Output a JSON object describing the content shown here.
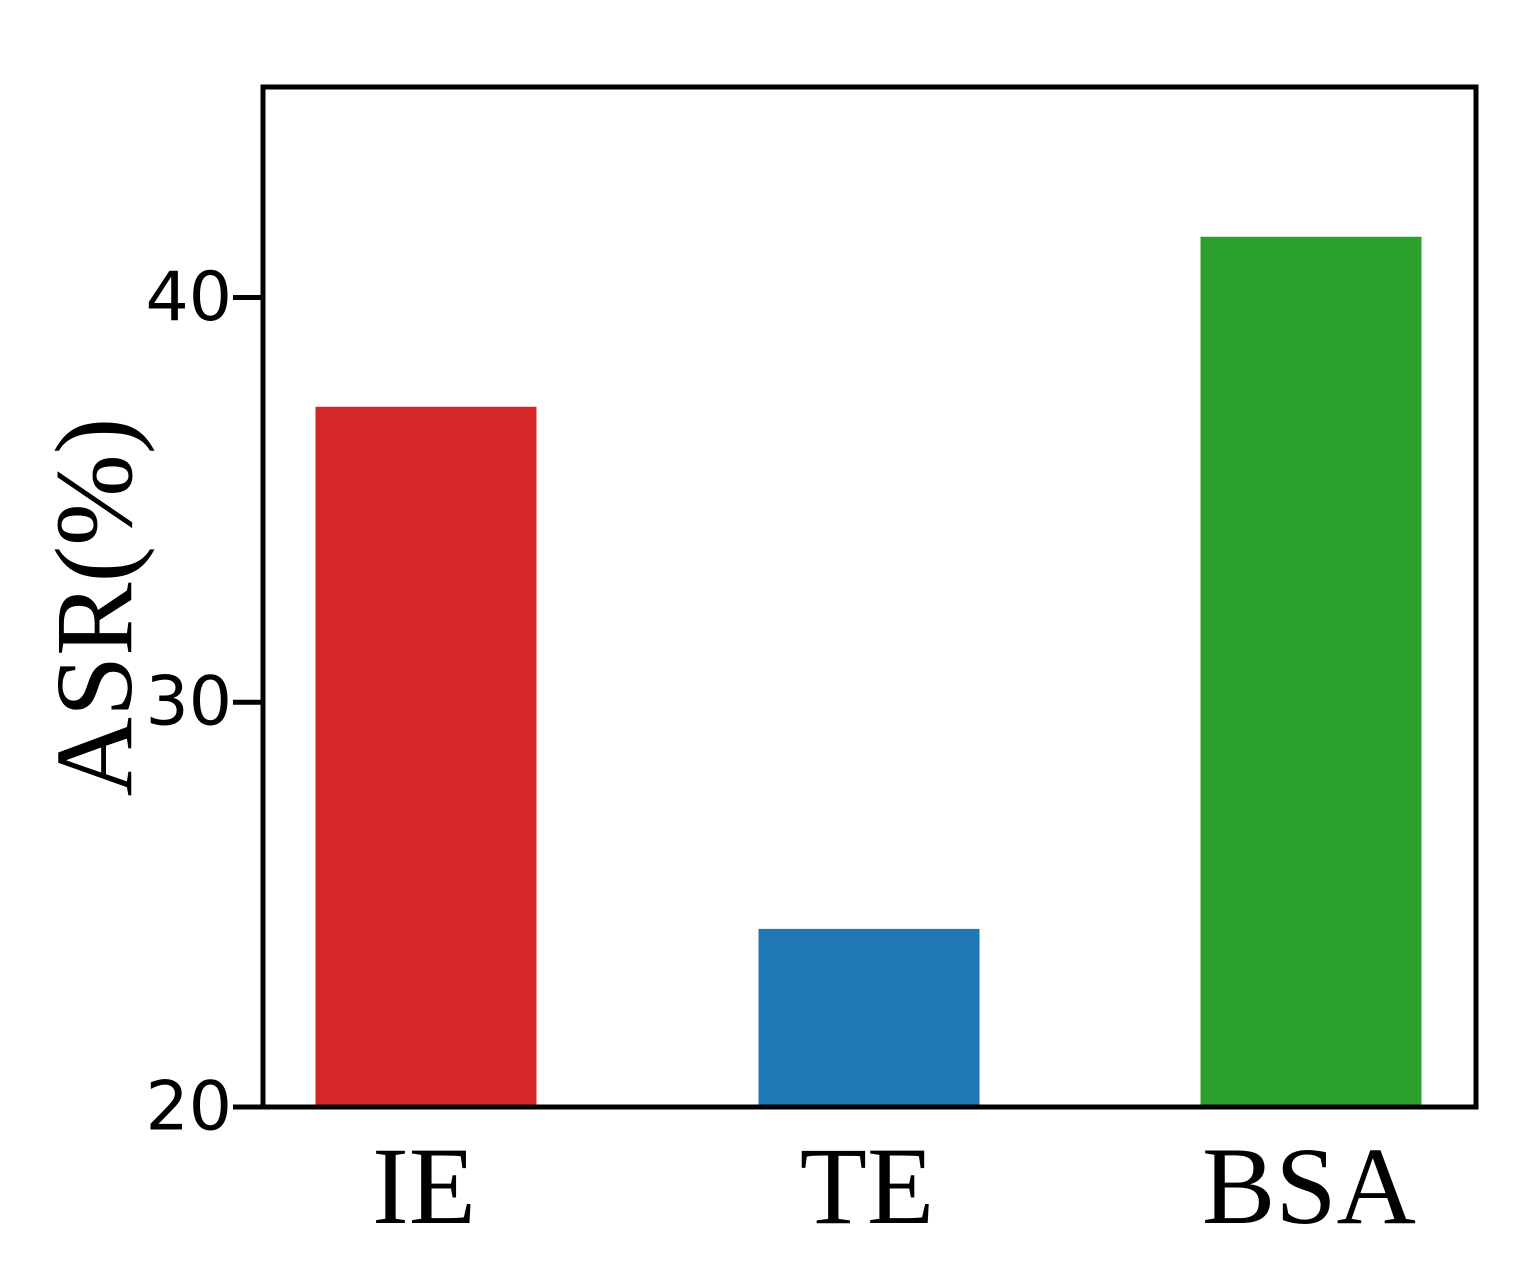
{
  "chart_data": {
    "type": "bar",
    "categories": [
      "IE",
      "TE",
      "BSA"
    ],
    "values": [
      37.3,
      24.4,
      41.5
    ],
    "colors": [
      "#d62728",
      "#1f77b4",
      "#2ca02c"
    ],
    "title": "",
    "xlabel": "",
    "ylabel": "ASR(%)",
    "ylim": [
      20,
      45.2
    ],
    "yticks": [
      20,
      30,
      40
    ],
    "ytick_labels": [
      "20",
      "30",
      "40"
    ],
    "grid": false,
    "legend": "none"
  }
}
